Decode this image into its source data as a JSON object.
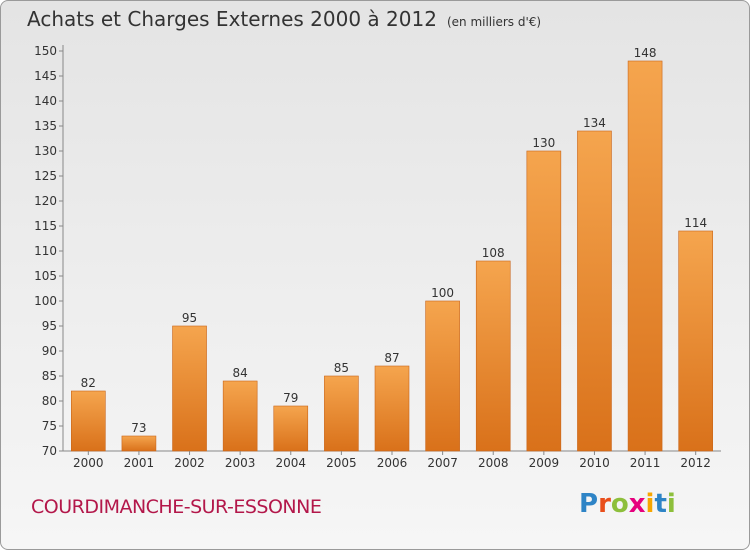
{
  "title": "Achats et Charges Externes 2000 à 2012",
  "unit": "(en milliers d'€)",
  "place": "COURDIMANCHE-SUR-ESSONNE",
  "logo": {
    "text": "Proxiti",
    "letters": [
      {
        "ch": "P",
        "color": "#2e84c6"
      },
      {
        "ch": "r",
        "color": "#e94e1b"
      },
      {
        "ch": "o",
        "color": "#8dbf3b"
      },
      {
        "ch": "x",
        "color": "#e6007e"
      },
      {
        "ch": "i",
        "color": "#f7a600"
      },
      {
        "ch": "t",
        "color": "#2e84c6"
      },
      {
        "ch": "i",
        "color": "#8dbf3b"
      }
    ]
  },
  "colors": {
    "bar_top": "#f5a54e",
    "bar_bottom": "#d9711a",
    "bar_stroke": "#c9651a",
    "place_text": "#b3174a"
  },
  "chart_data": {
    "type": "bar",
    "categories": [
      "2000",
      "2001",
      "2002",
      "2003",
      "2004",
      "2005",
      "2006",
      "2007",
      "2008",
      "2009",
      "2010",
      "2011",
      "2012"
    ],
    "values": [
      82,
      73,
      95,
      84,
      79,
      85,
      87,
      100,
      108,
      130,
      134,
      148,
      114
    ],
    "ylim": [
      70,
      150
    ],
    "yticks": [
      70,
      75,
      80,
      85,
      90,
      95,
      100,
      105,
      110,
      115,
      120,
      125,
      130,
      135,
      140,
      145,
      150
    ],
    "grid": false,
    "data_labels": true
  }
}
